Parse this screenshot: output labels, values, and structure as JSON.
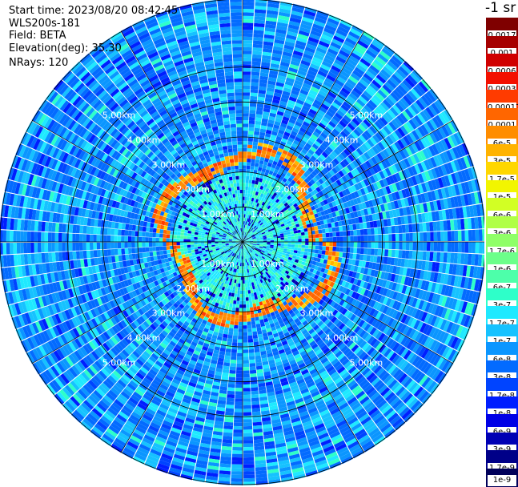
{
  "header": {
    "start_time": "Start time: 2023/08/20 08:42:45",
    "instrument": "WLS200s-181",
    "field": "Field: BETA",
    "elevation": "Elevation(deg): 35.30",
    "nrays": "NRays: 120"
  },
  "plot": {
    "type": "polar-ppi",
    "rays": 120,
    "ring_labels": [
      "1.00km",
      "2.00km",
      "3.00km",
      "4.00km",
      "5.00km"
    ],
    "ring_km": [
      1,
      2,
      3,
      4,
      5
    ],
    "max_range_km": 7.1,
    "strong_ring_km": 2.3
  },
  "colorbar": {
    "title": "-1 sr",
    "labels": [
      "0.0017",
      "0.001",
      "0.0006",
      "0.0003",
      "0.00017",
      "0.0001",
      "6e-5",
      "3e-5",
      "1.7e-5",
      "1e-5",
      "6e-6",
      "3e-6",
      "1.7e-6",
      "1e-6",
      "6e-7",
      "3e-7",
      "1.7e-7",
      "1e-7",
      "6e-8",
      "3e-8",
      "1.7e-8",
      "1e-8",
      "6e-9",
      "3e-9",
      "1.7e-9",
      "1e-9"
    ],
    "colors": [
      "#7f0000",
      "#a60000",
      "#d00000",
      "#f31000",
      "#ff3b00",
      "#ff6600",
      "#ff8d00",
      "#ffb300",
      "#ffd700",
      "#f2f500",
      "#d2ff24",
      "#b0ff46",
      "#8fff68",
      "#6cff8a",
      "#4dffaa",
      "#2effc9",
      "#1fe9ff",
      "#16c2ff",
      "#0b96ff",
      "#036bff",
      "#0044ff",
      "#001eff",
      "#0000e6",
      "#0000b4",
      "#000088",
      "#00005a"
    ]
  }
}
